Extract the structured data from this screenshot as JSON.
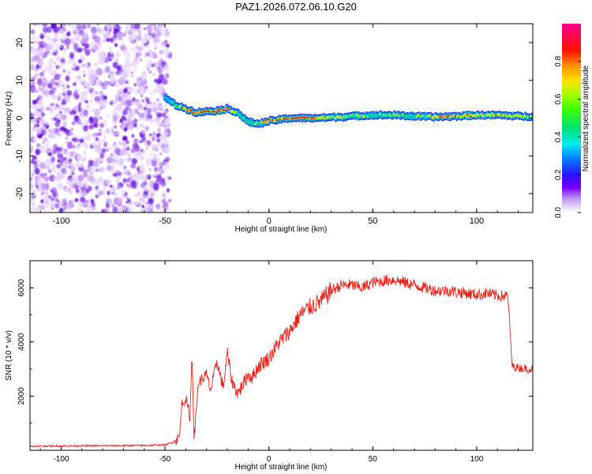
{
  "title": "PAZ1.2026.072.06.10.G20",
  "chart_data": [
    {
      "type": "heatmap",
      "name": "spectrogram",
      "xlabel": "Height of straight line (km)",
      "ylabel": "Frequency (Hz)",
      "xlim": [
        -115,
        127
      ],
      "ylim": [
        -25,
        25
      ],
      "xticks": [
        -100,
        -50,
        0,
        50,
        100
      ],
      "yticks": [
        -20,
        -10,
        0,
        10,
        20
      ],
      "colorbar": {
        "label": "Normalized spectral amplitude",
        "range": [
          0.0,
          1.0
        ],
        "ticks": [
          0.0,
          0.2,
          0.4,
          0.6,
          0.8
        ],
        "tick_labels": [
          "0.0",
          "0.2",
          "0.4",
          "0.6",
          "0.8"
        ],
        "colormap": [
          "#ffffff",
          "#e6d2fa",
          "#b07af0",
          "#6a00e0",
          "#1a1aff",
          "#00c8ff",
          "#00e0a0",
          "#40ff00",
          "#f0ff00",
          "#ff9a00",
          "#ff0000",
          "#ff0099"
        ]
      },
      "noise_region_x": [
        -115,
        -50
      ],
      "signal_ridge": {
        "x": [
          -50,
          -45,
          -40,
          -35,
          -30,
          -25,
          -20,
          -15,
          -10,
          -5,
          0,
          10,
          20,
          30,
          40,
          50,
          60,
          70,
          80,
          90,
          100,
          110,
          120,
          127
        ],
        "freq_hz": [
          5.5,
          3.5,
          2.5,
          1.5,
          1.8,
          2.0,
          2.5,
          1.5,
          -1.0,
          -1.5,
          -0.8,
          0.0,
          0.0,
          0.2,
          0.5,
          0.8,
          0.8,
          0.5,
          0.3,
          0.5,
          0.8,
          0.8,
          0.5,
          0.5
        ],
        "amplitude": [
          0.3,
          0.55,
          0.8,
          0.9,
          0.9,
          0.9,
          0.85,
          0.6,
          0.5,
          0.6,
          0.85,
          0.95,
          0.95,
          0.7,
          0.6,
          0.55,
          0.6,
          0.55,
          0.75,
          0.8,
          0.7,
          0.75,
          0.7,
          0.6
        ]
      }
    },
    {
      "type": "line",
      "name": "snr",
      "color": "#e8231a",
      "xlabel": "Height of straight line (km)",
      "ylabel": "SNR (10 * v/v)",
      "xlim": [
        -115,
        127
      ],
      "ylim": [
        0,
        7000
      ],
      "xticks": [
        -100,
        -50,
        0,
        50,
        100
      ],
      "yticks": [
        2000,
        4000,
        6000
      ],
      "x": [
        -115,
        -100,
        -80,
        -60,
        -50,
        -46,
        -43,
        -42,
        -40,
        -38,
        -37,
        -36,
        -34,
        -30,
        -28,
        -25,
        -22,
        -20,
        -18,
        -15,
        -12,
        -10,
        -8,
        -5,
        -2,
        0,
        5,
        10,
        15,
        20,
        25,
        30,
        35,
        40,
        45,
        50,
        55,
        60,
        65,
        70,
        75,
        80,
        85,
        90,
        95,
        100,
        105,
        110,
        115,
        116,
        117,
        120,
        125,
        127
      ],
      "y": [
        150,
        160,
        170,
        180,
        200,
        300,
        500,
        1700,
        1900,
        1200,
        3600,
        400,
        2500,
        2800,
        2200,
        3300,
        2300,
        3600,
        2600,
        2100,
        2500,
        2800,
        2700,
        3100,
        3300,
        3400,
        4000,
        4400,
        5000,
        5300,
        5500,
        5900,
        6100,
        6100,
        6000,
        6200,
        6250,
        6300,
        6200,
        6100,
        6000,
        5900,
        5900,
        5850,
        5800,
        5750,
        5800,
        5700,
        5700,
        4500,
        3100,
        3050,
        3000,
        3000
      ]
    }
  ]
}
